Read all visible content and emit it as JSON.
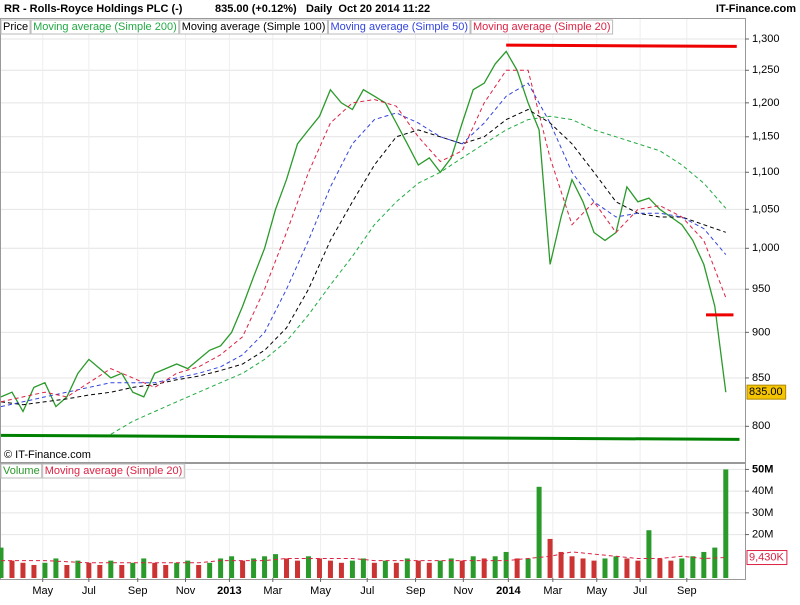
{
  "header": {
    "title": "RR - Rolls-Royce Holdings PLC (-)",
    "quote": "835.00 (+0.12%)",
    "period": "Daily  Oct 20 2014 11:22",
    "brand": "IT-Finance.com"
  },
  "chart_data": [
    {
      "type": "line",
      "log_scale": true,
      "grid": true,
      "watermark": "© IT-Finance.com",
      "x": [
        0,
        2,
        4,
        6,
        8,
        10,
        12,
        14,
        16,
        18,
        20,
        22,
        24,
        26,
        28,
        30,
        32,
        34,
        36,
        38,
        40,
        42,
        44,
        46,
        48,
        50,
        52,
        54,
        56,
        58,
        60,
        62,
        64,
        66,
        68,
        70,
        72,
        74,
        76,
        78,
        80,
        82,
        84,
        86,
        88,
        90,
        92,
        94,
        96,
        98,
        100,
        102,
        104,
        106,
        108,
        110,
        112,
        114,
        116,
        118,
        120,
        122,
        124,
        126,
        128,
        130,
        132
      ],
      "xlim": [
        0,
        135.5
      ],
      "xticks": [
        {
          "value": 7.6,
          "label": "May"
        },
        {
          "value": 16,
          "label": "Jul"
        },
        {
          "value": 24.9,
          "label": "Sep"
        },
        {
          "value": 33.6,
          "label": "Nov"
        },
        {
          "value": 41.6,
          "label": "2013"
        },
        {
          "value": 49.5,
          "label": "Mar"
        },
        {
          "value": 58.2,
          "label": "May"
        },
        {
          "value": 66.7,
          "label": "Jul"
        },
        {
          "value": 75.5,
          "label": "Sep"
        },
        {
          "value": 84.2,
          "label": "Nov"
        },
        {
          "value": 92.4,
          "label": "2014"
        },
        {
          "value": 100.5,
          "label": "Mar"
        },
        {
          "value": 108.5,
          "label": "May"
        },
        {
          "value": 116.4,
          "label": "Jul"
        },
        {
          "value": 124.9,
          "label": "Sep"
        }
      ],
      "ylim": [
        765,
        1333
      ],
      "yticks": [
        800,
        850,
        900,
        950,
        {
          "value": 1000,
          "label": "1,000"
        },
        {
          "value": 1050,
          "label": "1,050"
        },
        {
          "value": 1100,
          "label": "1,100"
        },
        {
          "value": 1150,
          "label": "1,150"
        },
        {
          "value": 1200,
          "label": "1,200"
        },
        {
          "value": 1250,
          "label": "1,250"
        },
        {
          "value": 1300,
          "label": "1,300"
        }
      ],
      "series": [
        {
          "name": "Price",
          "color": "#2a9a2a",
          "style": "solid",
          "badge_color": "#f5c400",
          "values": [
            830,
            835,
            815,
            840,
            845,
            820,
            830,
            855,
            870,
            860,
            850,
            855,
            835,
            830,
            855,
            860,
            865,
            860,
            870,
            880,
            885,
            900,
            930,
            965,
            1000,
            1050,
            1090,
            1140,
            1160,
            1180,
            1220,
            1200,
            1190,
            1220,
            1210,
            1200,
            1170,
            1140,
            1110,
            1120,
            1100,
            1120,
            1170,
            1220,
            1230,
            1260,
            1280,
            1250,
            1200,
            1160,
            980,
            1040,
            1090,
            1060,
            1020,
            1010,
            1020,
            1080,
            1060,
            1065,
            1050,
            1040,
            1030,
            1010,
            980,
            930,
            835
          ],
          "value_labels": [
            null,
            null,
            null,
            null,
            null,
            null,
            null,
            null,
            null,
            null,
            null,
            null,
            null,
            null,
            null,
            null,
            null,
            null,
            null,
            null,
            null,
            null,
            null,
            null,
            null,
            null,
            null,
            null,
            null,
            null,
            null,
            null,
            null,
            null,
            null,
            null,
            null,
            null,
            null,
            null,
            null,
            null,
            null,
            null,
            null,
            null,
            null,
            null,
            null,
            null,
            null,
            null,
            null,
            null,
            null,
            null,
            null,
            null,
            null,
            null,
            null,
            null,
            null,
            null,
            null,
            null,
            "835.00"
          ]
        },
        {
          "name": "Moving average (Simple 200)",
          "color": "#22aa44",
          "style": "dashed",
          "x": [
            0,
            4,
            8,
            12,
            16,
            20,
            24,
            28,
            32,
            36,
            40,
            44,
            48,
            52,
            56,
            60,
            64,
            68,
            72,
            76,
            80,
            84,
            88,
            92,
            96,
            100,
            104,
            108,
            112,
            116,
            120,
            124,
            128,
            132
          ],
          "values": [
            null,
            null,
            null,
            null,
            null,
            792,
            805,
            815,
            825,
            835,
            845,
            855,
            870,
            890,
            920,
            955,
            990,
            1030,
            1060,
            1085,
            1100,
            1120,
            1140,
            1160,
            1175,
            1180,
            1175,
            1160,
            1150,
            1140,
            1130,
            1110,
            1085,
            1051.4
          ]
        },
        {
          "name": "Moving average (Simple 100)",
          "color": "#000000",
          "style": "dashed",
          "x": [
            0,
            4,
            8,
            12,
            16,
            20,
            24,
            28,
            32,
            36,
            40,
            44,
            48,
            52,
            56,
            60,
            64,
            68,
            72,
            76,
            80,
            84,
            88,
            92,
            96,
            100,
            104,
            108,
            112,
            116,
            120,
            124,
            128,
            132
          ],
          "values": [
            825,
            822,
            825,
            828,
            832,
            835,
            840,
            843,
            848,
            852,
            858,
            865,
            880,
            905,
            950,
            1010,
            1060,
            1110,
            1150,
            1160,
            1150,
            1140,
            1150,
            1175,
            1190,
            1170,
            1140,
            1100,
            1060,
            1045,
            1040,
            1040,
            1030,
            1020.3
          ]
        },
        {
          "name": "Moving average (Simple 50)",
          "color": "#3344dd",
          "style": "dashed",
          "x": [
            0,
            4,
            8,
            12,
            16,
            20,
            24,
            28,
            32,
            36,
            40,
            44,
            48,
            52,
            56,
            60,
            64,
            68,
            72,
            76,
            80,
            84,
            88,
            92,
            96,
            100,
            104,
            108,
            112,
            116,
            120,
            124,
            128,
            132
          ],
          "values": [
            820,
            825,
            830,
            835,
            840,
            845,
            845,
            845,
            850,
            855,
            862,
            875,
            900,
            950,
            1010,
            1080,
            1140,
            1175,
            1185,
            1170,
            1150,
            1140,
            1170,
            1210,
            1230,
            1170,
            1100,
            1060,
            1040,
            1045,
            1045,
            1040,
            1025,
            992.14
          ]
        },
        {
          "name": "Moving average (Simple 20)",
          "color": "#dd2244",
          "style": "dashed",
          "x": [
            0,
            4,
            8,
            12,
            16,
            20,
            24,
            28,
            32,
            36,
            40,
            44,
            48,
            52,
            56,
            60,
            64,
            68,
            72,
            76,
            80,
            84,
            88,
            92,
            96,
            100,
            104,
            108,
            112,
            116,
            120,
            124,
            128,
            132
          ],
          "values": [
            825,
            830,
            835,
            830,
            845,
            860,
            850,
            840,
            855,
            862,
            875,
            895,
            950,
            1020,
            1100,
            1170,
            1200,
            1205,
            1195,
            1150,
            1115,
            1130,
            1200,
            1250,
            1250,
            1120,
            1030,
            1060,
            1020,
            1050,
            1055,
            1040,
            1010,
            940.08
          ]
        }
      ],
      "levels": [
        {
          "color": "#ee0000",
          "x": [
            92,
            134
          ],
          "values": [
            1290,
            1288
          ]
        },
        {
          "color": "#ee0000",
          "x": [
            128.4,
            133.4
          ],
          "values": [
            920,
            920
          ]
        },
        {
          "color": "#008000",
          "x": [
            0,
            134.5
          ],
          "values": [
            791,
            787
          ]
        }
      ]
    },
    {
      "type": "bar",
      "log_scale": false,
      "grid": true,
      "x": [
        0,
        2,
        4,
        6,
        8,
        10,
        12,
        14,
        16,
        18,
        20,
        22,
        24,
        26,
        28,
        30,
        32,
        34,
        36,
        38,
        40,
        42,
        44,
        46,
        48,
        50,
        52,
        54,
        56,
        58,
        60,
        62,
        64,
        66,
        68,
        70,
        72,
        74,
        76,
        78,
        80,
        82,
        84,
        86,
        88,
        90,
        92,
        94,
        96,
        98,
        100,
        102,
        104,
        106,
        108,
        110,
        112,
        114,
        116,
        118,
        120,
        122,
        124,
        126,
        128,
        130,
        132
      ],
      "xlim": [
        0,
        135.5
      ],
      "ylim": [
        0,
        52.5
      ],
      "yticks": [
        {
          "value": 20,
          "label": "20M"
        },
        {
          "value": 30,
          "label": "30M"
        },
        {
          "value": 40,
          "label": "40M"
        },
        {
          "value": 50,
          "label": "50M"
        }
      ],
      "series": [
        {
          "name": "Volume",
          "color": "#2a9a2a",
          "style": "bar",
          "values": [
            14,
            8,
            7,
            6,
            7,
            9,
            6,
            8,
            7,
            6,
            8,
            6,
            7,
            9,
            7,
            6,
            7,
            8,
            6,
            7,
            9,
            10,
            8,
            9,
            10,
            11,
            9,
            8,
            10,
            9,
            8,
            7,
            8,
            9,
            7,
            8,
            7,
            9,
            8,
            7,
            8,
            9,
            8,
            10,
            9,
            10,
            12,
            9,
            9,
            42,
            18,
            12,
            10,
            9,
            8,
            9,
            10,
            9,
            8,
            22,
            9,
            8,
            9,
            10,
            12,
            14,
            50
          ]
        },
        {
          "name": "Moving average (Simple 20)",
          "color": "#dd2244",
          "style": "dashed",
          "x": [
            0,
            4,
            8,
            12,
            16,
            20,
            24,
            28,
            32,
            36,
            40,
            44,
            48,
            52,
            56,
            60,
            64,
            68,
            72,
            76,
            80,
            84,
            88,
            92,
            96,
            100,
            104,
            108,
            112,
            116,
            120,
            124,
            128,
            132
          ],
          "values": [
            8,
            8,
            8,
            7.5,
            7,
            7,
            7,
            7,
            7,
            7,
            8,
            8,
            8,
            9,
            9,
            9,
            9,
            8,
            8,
            8,
            8,
            8,
            8,
            8,
            9,
            10,
            12,
            11,
            10,
            9,
            9,
            10,
            9,
            9.43
          ],
          "value_labels": [
            null,
            null,
            null,
            null,
            null,
            null,
            null,
            null,
            null,
            null,
            null,
            null,
            null,
            null,
            null,
            null,
            null,
            null,
            null,
            null,
            null,
            null,
            null,
            null,
            null,
            null,
            null,
            null,
            null,
            null,
            null,
            null,
            null,
            "9,430K"
          ]
        }
      ]
    }
  ]
}
